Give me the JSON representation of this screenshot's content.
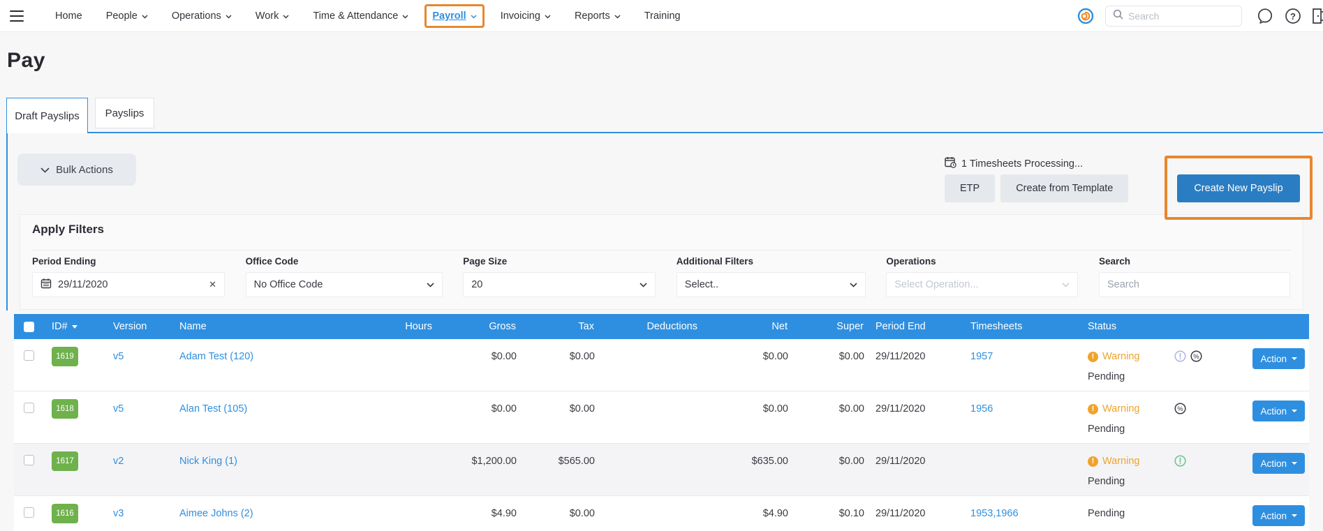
{
  "navbar": {
    "items": [
      {
        "label": "Home",
        "dropdown": false,
        "active": false
      },
      {
        "label": "People",
        "dropdown": true,
        "active": false
      },
      {
        "label": "Operations",
        "dropdown": true,
        "active": false
      },
      {
        "label": "Work",
        "dropdown": true,
        "active": false
      },
      {
        "label": "Time & Attendance",
        "dropdown": true,
        "active": false
      },
      {
        "label": "Payroll",
        "dropdown": true,
        "active": true
      },
      {
        "label": "Invoicing",
        "dropdown": true,
        "active": false
      },
      {
        "label": "Reports",
        "dropdown": true,
        "active": false
      },
      {
        "label": "Training",
        "dropdown": false,
        "active": false
      }
    ],
    "search_placeholder": "Search",
    "icons": [
      "brand-spiral-icon",
      "search-icon",
      "chat-icon",
      "help-icon",
      "logout-door-icon"
    ]
  },
  "page": {
    "title": "Pay"
  },
  "tabs": [
    {
      "label": "Draft Payslips",
      "active": true
    },
    {
      "label": "Payslips",
      "active": false
    }
  ],
  "toolbar": {
    "bulk_actions_label": "Bulk Actions",
    "processing_note": "1 Timesheets Processing...",
    "etp_label": "ETP",
    "create_from_template_label": "Create from Template",
    "create_new_payslip_label": "Create New Payslip"
  },
  "filters": {
    "title": "Apply Filters",
    "period_ending": {
      "label": "Period Ending",
      "value": "29/11/2020"
    },
    "office_code": {
      "label": "Office Code",
      "value": "No Office Code"
    },
    "page_size": {
      "label": "Page Size",
      "value": "20"
    },
    "additional_filters": {
      "label": "Additional Filters",
      "value": "Select.."
    },
    "operations": {
      "label": "Operations",
      "placeholder": "Select Operation..."
    },
    "search": {
      "label": "Search",
      "placeholder": "Search"
    }
  },
  "table": {
    "headers": [
      "ID#",
      "Version",
      "Name",
      "Hours",
      "Gross",
      "Tax",
      "Deductions",
      "Net",
      "Super",
      "Period End",
      "Timesheets",
      "Status"
    ],
    "action_label": "Action",
    "rows": [
      {
        "id": "1619",
        "version": "v5",
        "name": "Adam Test (120)",
        "hours": "",
        "gross": "$0.00",
        "tax": "$0.00",
        "deductions": "",
        "net": "$0.00",
        "super": "$0.00",
        "period_end": "29/11/2020",
        "timesheets": "1957",
        "warning": "Warning",
        "status": "Pending",
        "icons": [
          "info-circle-lavender-icon",
          "percent-circle-icon"
        ],
        "shaded": false
      },
      {
        "id": "1618",
        "version": "v5",
        "name": "Alan Test (105)",
        "hours": "",
        "gross": "$0.00",
        "tax": "$0.00",
        "deductions": "",
        "net": "$0.00",
        "super": "$0.00",
        "period_end": "29/11/2020",
        "timesheets": "1956",
        "warning": "Warning",
        "status": "Pending",
        "icons": [
          "percent-circle-icon"
        ],
        "shaded": false
      },
      {
        "id": "1617",
        "version": "v2",
        "name": "Nick King (1)",
        "hours": "",
        "gross": "$1,200.00",
        "tax": "$565.00",
        "deductions": "",
        "net": "$635.00",
        "super": "$0.00",
        "period_end": "29/11/2020",
        "timesheets": "",
        "warning": "Warning",
        "status": "Pending",
        "icons": [
          "info-circle-green-icon"
        ],
        "shaded": true
      },
      {
        "id": "1616",
        "version": "v3",
        "name": "Aimee Johns (2)",
        "hours": "",
        "gross": "$4.90",
        "tax": "$0.00",
        "deductions": "",
        "net": "$4.90",
        "super": "$0.10",
        "period_end": "29/11/2020",
        "timesheets": "1953,1966",
        "warning": null,
        "status": "Pending",
        "icons": [],
        "shaded": false
      }
    ]
  },
  "colors": {
    "accent_blue": "#2e8fe0",
    "primary_button_blue": "#2a7dc2",
    "annotation_orange": "#e8872e",
    "warning_orange": "#f0a32a",
    "badge_green": "#6fb14c",
    "lavender_icon": "#a9b3e6",
    "green_icon": "#67c48b",
    "table_header_bg": "#2e8fe0",
    "shaded_row_bg": "#f4f4f6"
  }
}
